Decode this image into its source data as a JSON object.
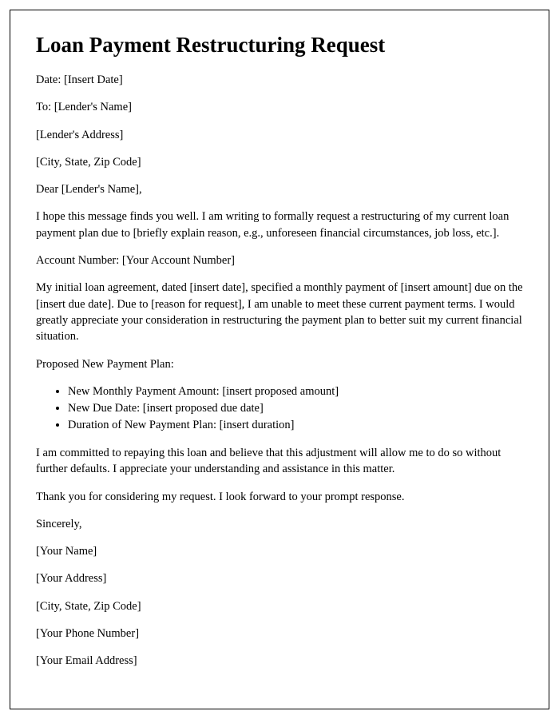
{
  "title": "Loan Payment Restructuring Request",
  "header": {
    "date": "Date: [Insert Date]",
    "to": "To: [Lender's Name]",
    "lender_address": "[Lender's Address]",
    "lender_city": "[City, State, Zip Code]"
  },
  "salutation": "Dear [Lender's Name],",
  "intro": "I hope this message finds you well. I am writing to formally request a restructuring of my current loan payment plan due to [briefly explain reason, e.g., unforeseen financial circumstances, job loss, etc.].",
  "account": "Account Number: [Your Account Number]",
  "body1": "My initial loan agreement, dated [insert date], specified a monthly payment of [insert amount] due on the [insert due date]. Due to [reason for request], I am unable to meet these current payment terms. I would greatly appreciate your consideration in restructuring the payment plan to better suit my current financial situation.",
  "proposed_label": "Proposed New Payment Plan:",
  "proposed": {
    "item1": "New Monthly Payment Amount: [insert proposed amount]",
    "item2": "New Due Date: [insert proposed due date]",
    "item3": "Duration of New Payment Plan: [insert duration]"
  },
  "body2": "I am committed to repaying this loan and believe that this adjustment will allow me to do so without further defaults. I appreciate your understanding and assistance in this matter.",
  "thanks": "Thank you for considering my request. I look forward to your prompt response.",
  "closing": "Sincerely,",
  "signature": {
    "name": "[Your Name]",
    "address": "[Your Address]",
    "city": "[City, State, Zip Code]",
    "phone": "[Your Phone Number]",
    "email": "[Your Email Address]"
  }
}
